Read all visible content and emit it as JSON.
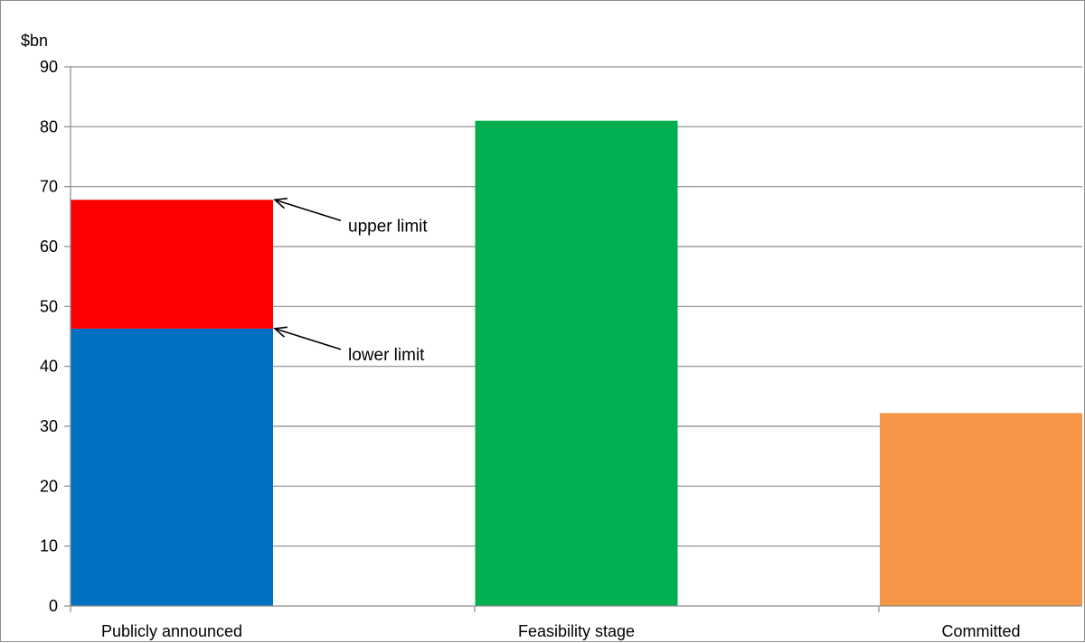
{
  "chart_data": {
    "type": "bar",
    "stacked": true,
    "categories": [
      "Publicly announced",
      "Feasibility stage",
      "Committed"
    ],
    "series": [
      {
        "color": "#0070c0",
        "values": [
          46.3,
          0,
          0
        ]
      },
      {
        "color": "#ff0000",
        "values": [
          21.5,
          0,
          0
        ]
      },
      {
        "color": "#00b050",
        "values": [
          0,
          81,
          0
        ]
      },
      {
        "color": "#f79646",
        "values": [
          0,
          0,
          32.2
        ]
      }
    ],
    "ylabel": "$bn",
    "ylim": [
      0,
      90
    ],
    "yticks": [
      0,
      10,
      20,
      30,
      40,
      50,
      60,
      70,
      80,
      90
    ],
    "grid": true,
    "legend": "none",
    "annotations": [
      {
        "text": "upper limit",
        "category": "Publicly announced",
        "y": 67.8
      },
      {
        "text": "lower limit",
        "category": "Publicly announced",
        "y": 46.3
      }
    ]
  }
}
